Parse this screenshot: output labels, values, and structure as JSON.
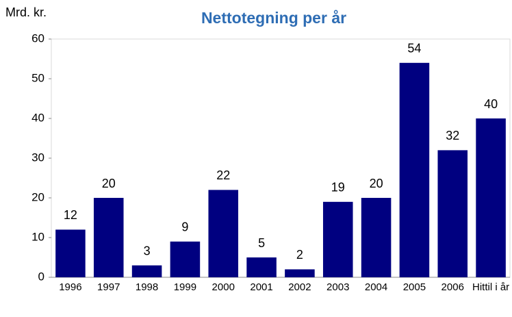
{
  "chart_data": {
    "type": "bar",
    "title": "Nettotegning per år",
    "y_label": "Mrd. kr.",
    "categories": [
      "1996",
      "1997",
      "1998",
      "1999",
      "2000",
      "2001",
      "2002",
      "2003",
      "2004",
      "2005",
      "2006",
      "Hittil i år"
    ],
    "values": [
      12,
      20,
      3,
      9,
      22,
      5,
      2,
      19,
      20,
      54,
      32,
      40
    ],
    "color": "#000080",
    "ylim": [
      0,
      60
    ],
    "yticks": [
      0,
      10,
      20,
      30,
      40,
      50,
      60
    ],
    "grid": false
  }
}
